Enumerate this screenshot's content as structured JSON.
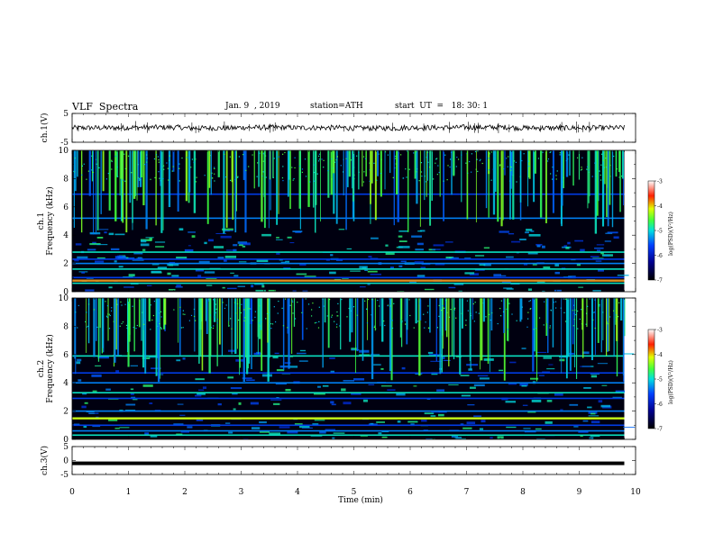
{
  "header": {
    "title": "VLF  Spectra",
    "date": "Jan. 9  , 2019",
    "station": "station=ATH",
    "start_time": "start  UT  =   18: 30: 1"
  },
  "chart_data": [
    {
      "type": "line",
      "panel": "ch1-waveform",
      "ylabel": "ch.1(V)",
      "ylim": [
        -5,
        5
      ],
      "yticks": [
        "5",
        "-5"
      ],
      "xlim": [
        0,
        10
      ],
      "xmax_data": 9.8,
      "series": [
        {
          "values": [
            0,
            0.4,
            -0.2,
            0.3,
            0.1,
            -0.3,
            0.2,
            0.5,
            -0.1,
            0.0,
            0.2
          ]
        }
      ]
    },
    {
      "type": "heatmap",
      "panel": "ch1-spectrogram",
      "ylabel": "ch.1\nFrequency  (kHz)",
      "ylim": [
        0,
        10
      ],
      "yticks": [
        "0",
        "2",
        "4",
        "6",
        "8",
        "10"
      ],
      "xlim": [
        0,
        10
      ],
      "xmax_data": 9.8,
      "colorbar": {
        "label": "log(PSD)(V²/Hz)",
        "range": [
          -7,
          -3
        ],
        "ticks": [
          "-3",
          "-4",
          "-5",
          "-6",
          "-7"
        ]
      },
      "description_bands_khz": [
        0.6,
        0.8,
        1.0,
        1.6,
        2.0,
        2.3,
        2.8,
        5.2,
        6.9
      ]
    },
    {
      "type": "heatmap",
      "panel": "ch2-spectrogram",
      "ylabel": "ch.2\nFrequency  (kHz)",
      "ylim": [
        0,
        10
      ],
      "yticks": [
        "0",
        "2",
        "4",
        "6",
        "8",
        "10"
      ],
      "xlim": [
        0,
        10
      ],
      "xmax_data": 9.8,
      "colorbar": {
        "label": "log(PSD)(V²/Hz)",
        "range": [
          -7,
          -3
        ],
        "ticks": [
          "-3",
          "-4",
          "-5",
          "-6",
          "-7"
        ]
      },
      "description_bands_khz": [
        0.3,
        0.6,
        1.0,
        1.5,
        2.0,
        2.9,
        3.3,
        4.0,
        4.7,
        5.9
      ]
    },
    {
      "type": "line",
      "panel": "ch3-waveform",
      "ylabel": "ch.3(V)",
      "ylim": [
        -5,
        5
      ],
      "yticks": [
        "5",
        "0",
        "-5"
      ],
      "xlim": [
        0,
        10
      ],
      "xmax_data": 9.8,
      "series": [
        {
          "values": [
            -1,
            -1,
            -1,
            -1,
            -1,
            -1,
            -1,
            -1,
            -1,
            -1,
            -1
          ]
        }
      ]
    }
  ],
  "x_axis": {
    "label": "Time  (min)",
    "ticks": [
      "0",
      "1",
      "2",
      "3",
      "4",
      "5",
      "6",
      "7",
      "8",
      "9",
      "10"
    ]
  },
  "colors": {
    "spec_bg": "#000010",
    "waveform": "#000000"
  }
}
